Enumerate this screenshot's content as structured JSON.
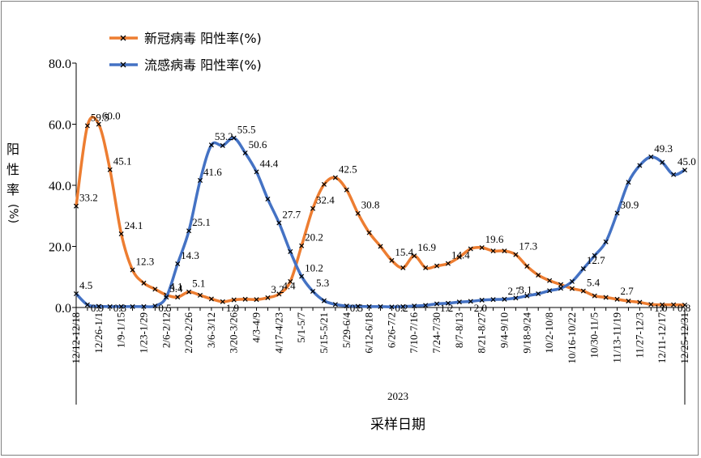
{
  "chart_data": {
    "type": "line",
    "title": "",
    "xlabel": "采样日期",
    "year_label": "2023",
    "ylabel_chars": [
      "阳",
      "性",
      "率",
      "(%)"
    ],
    "ylim": [
      0,
      80
    ],
    "yticks": [
      "0.0",
      "20.0",
      "40.0",
      "60.0",
      "80.0"
    ],
    "legend_position": "top-left",
    "x": [
      0,
      1,
      2,
      3,
      4,
      5,
      6,
      7,
      8,
      9,
      10,
      11,
      12,
      13,
      14,
      15,
      16,
      17,
      18,
      19,
      20,
      21,
      22,
      23,
      24,
      25,
      26,
      27,
      28,
      29,
      30,
      31,
      32,
      33,
      34,
      35,
      36,
      37,
      38,
      39,
      40,
      41,
      42,
      43,
      44,
      45,
      46,
      47,
      48,
      49,
      50,
      51,
      52,
      53,
      54
    ],
    "categories": [
      "12/12-12/18",
      "12/26-1/1",
      "1/9-1/15",
      "1/23-1/29",
      "2/6-2/12",
      "2/20-2/26",
      "3/6-3/12",
      "3/20-3/26",
      "4/3-4/9",
      "4/17-4/23",
      "5/1-5/7",
      "5/15-5/21",
      "5/29-6/4",
      "6/12-6/18",
      "6/26-7/2",
      "7/10-7/16",
      "7/24-7/30",
      "8/7-8/13",
      "8/21-8/27",
      "9/4-9/10",
      "9/18-9/24",
      "10/2-10/8",
      "10/16-10/22",
      "10/30-11/5",
      "11/13-11/19",
      "11/27-12/3",
      "12/11-12/17",
      "12/25-12/31"
    ],
    "category_positions": [
      0,
      2,
      4,
      6,
      8,
      10,
      12,
      14,
      16,
      18,
      20,
      22,
      24,
      26,
      28,
      30,
      32,
      34,
      36,
      38,
      40,
      42,
      44,
      46,
      48,
      50,
      52,
      54
    ],
    "series": [
      {
        "name": "新冠病毒  阳性率(%)",
        "color": "#ED7D31",
        "values": [
          33.2,
          59.5,
          60.0,
          45.1,
          24.1,
          12.3,
          8.0,
          6.0,
          4.1,
          3.4,
          5.1,
          4.0,
          2.8,
          1.9,
          2.5,
          2.7,
          2.6,
          3.2,
          4.4,
          8.5,
          20.2,
          32.4,
          40.3,
          42.5,
          38.5,
          30.8,
          24.5,
          20.0,
          15.4,
          13.0,
          16.9,
          13.0,
          13.6,
          14.4,
          16.5,
          19.2,
          19.6,
          18.5,
          18.5,
          17.3,
          13.5,
          10.6,
          8.8,
          7.5,
          6.2,
          5.4,
          3.8,
          3.3,
          2.7,
          2.1,
          1.7,
          1.0,
          0.9,
          0.9,
          0.8
        ],
        "labels": [
          {
            "i": 0,
            "text": "33.2"
          },
          {
            "i": 1,
            "text": "59.5"
          },
          {
            "i": 2,
            "text": "60.0"
          },
          {
            "i": 3,
            "text": "45.1"
          },
          {
            "i": 4,
            "text": "24.1"
          },
          {
            "i": 5,
            "text": "12.3"
          },
          {
            "i": 8,
            "text": "4.1"
          },
          {
            "i": 10,
            "text": "5.1"
          },
          {
            "i": 13,
            "text": "1.9"
          },
          {
            "i": 17,
            "text": "3.2"
          },
          {
            "i": 18,
            "text": "4.4"
          },
          {
            "i": 20,
            "text": "20.2"
          },
          {
            "i": 21,
            "text": "32.4"
          },
          {
            "i": 23,
            "text": "42.5"
          },
          {
            "i": 25,
            "text": "30.8"
          },
          {
            "i": 28,
            "text": "15.4"
          },
          {
            "i": 30,
            "text": "16.9"
          },
          {
            "i": 33,
            "text": "14.4"
          },
          {
            "i": 36,
            "text": "19.6"
          },
          {
            "i": 39,
            "text": "17.3"
          },
          {
            "i": 45,
            "text": "5.4"
          },
          {
            "i": 48,
            "text": "2.7"
          },
          {
            "i": 51,
            "text": "1.0"
          },
          {
            "i": 54,
            "text": "0.8"
          }
        ]
      },
      {
        "name": "流感病毒  阳性率(%)",
        "color": "#4472C4",
        "values": [
          4.5,
          0.9,
          0.4,
          0.3,
          0.3,
          0.3,
          0.3,
          0.5,
          3.4,
          14.3,
          25.1,
          41.6,
          53.2,
          53.0,
          55.5,
          50.6,
          44.4,
          35.5,
          27.7,
          18.3,
          10.2,
          5.3,
          2.2,
          1.0,
          0.5,
          0.4,
          0.3,
          0.3,
          0.2,
          0.3,
          0.5,
          0.7,
          1.2,
          1.4,
          1.8,
          2.0,
          2.4,
          2.6,
          2.7,
          3.1,
          3.8,
          4.5,
          5.5,
          6.3,
          8.5,
          12.7,
          17.0,
          21.5,
          30.9,
          41.0,
          46.5,
          49.3,
          47.5,
          43.5,
          45.0
        ],
        "labels": [
          {
            "i": 0,
            "text": "4.5"
          },
          {
            "i": 1,
            "text": "0.9"
          },
          {
            "i": 3,
            "text": "0.3"
          },
          {
            "i": 7,
            "text": "0.5"
          },
          {
            "i": 8,
            "text": "3.4"
          },
          {
            "i": 9,
            "text": "14.3"
          },
          {
            "i": 10,
            "text": "25.1"
          },
          {
            "i": 11,
            "text": "41.6"
          },
          {
            "i": 12,
            "text": "53.2"
          },
          {
            "i": 14,
            "text": "55.5"
          },
          {
            "i": 15,
            "text": "50.6"
          },
          {
            "i": 16,
            "text": "44.4"
          },
          {
            "i": 18,
            "text": "27.7"
          },
          {
            "i": 20,
            "text": "10.2"
          },
          {
            "i": 21,
            "text": "5.3"
          },
          {
            "i": 24,
            "text": "0.5"
          },
          {
            "i": 28,
            "text": "0.2"
          },
          {
            "i": 32,
            "text": "1.2"
          },
          {
            "i": 35,
            "text": "2.0"
          },
          {
            "i": 38,
            "text": "2.7"
          },
          {
            "i": 39,
            "text": "3.1"
          },
          {
            "i": 45,
            "text": "12.7"
          },
          {
            "i": 48,
            "text": "30.9"
          },
          {
            "i": 51,
            "text": "49.3"
          },
          {
            "i": 54,
            "text": "45.0"
          }
        ]
      }
    ]
  }
}
